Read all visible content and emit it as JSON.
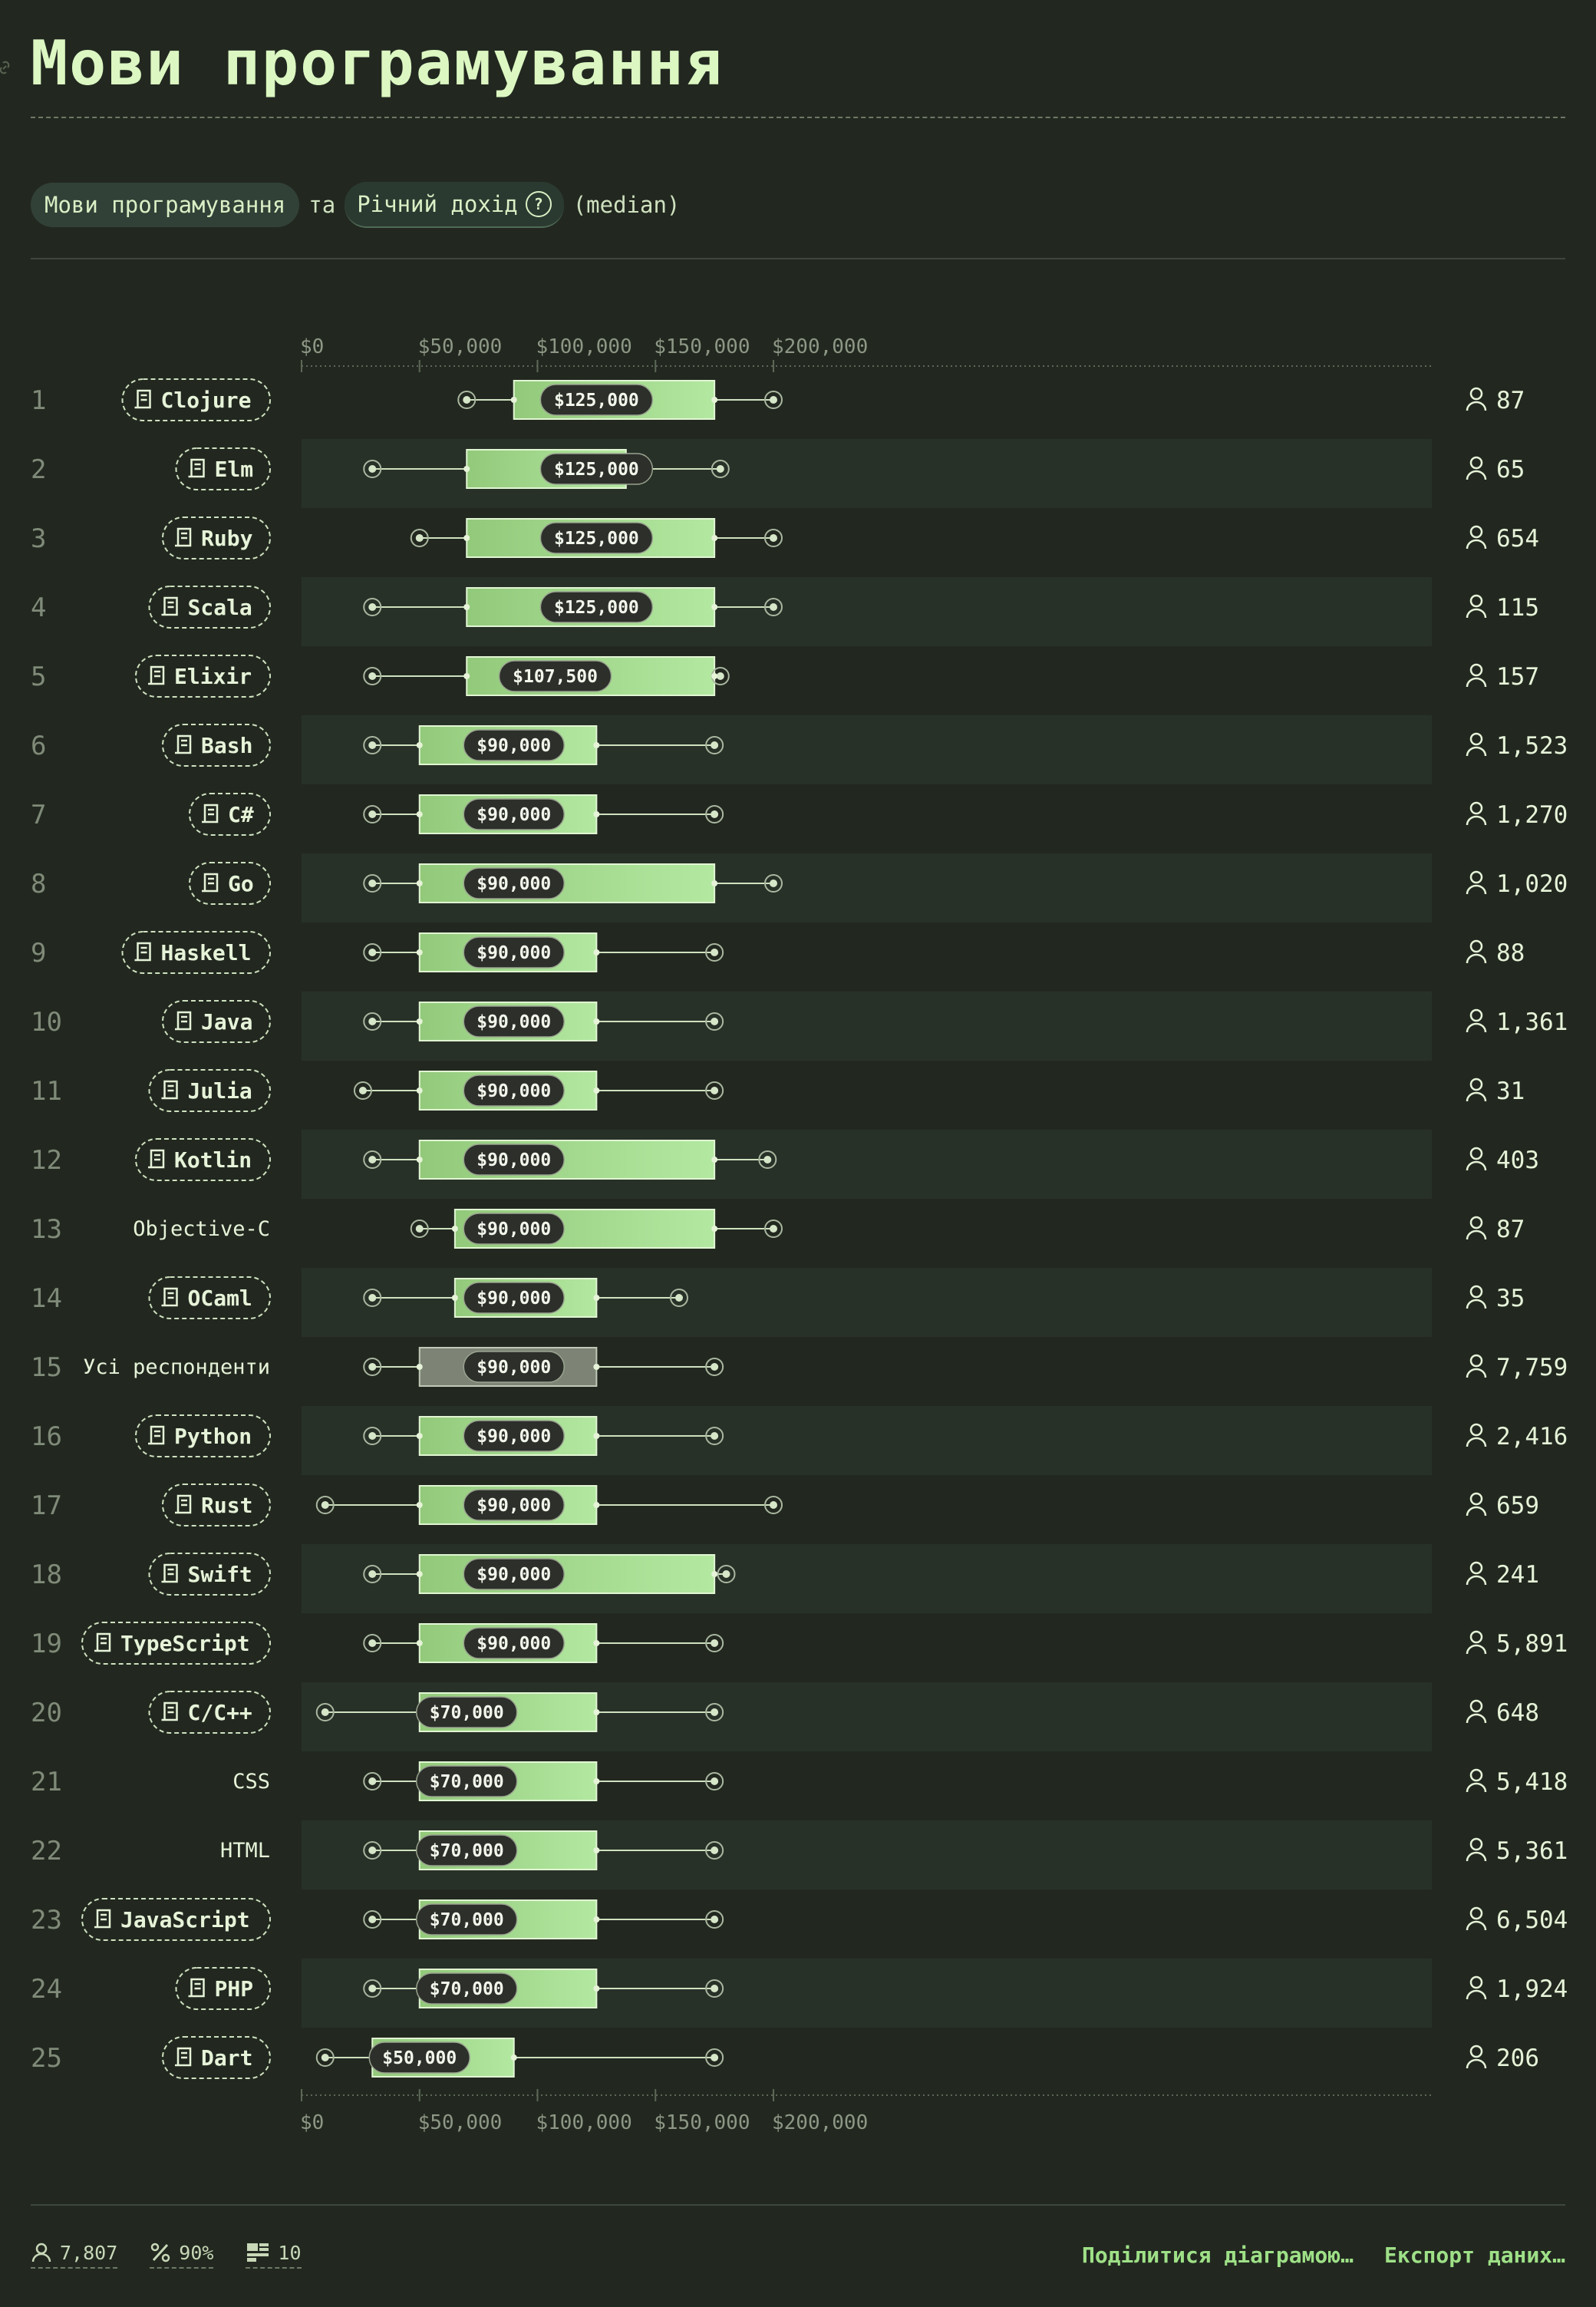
{
  "title": "Мови програмування",
  "subtitle": {
    "dimension": "Мови програмування",
    "conjunction": "та",
    "measure": "Річний дохід",
    "help_glyph": "?",
    "aggregation": "(median)"
  },
  "footer": {
    "respondents": "7,807",
    "percent": "90%",
    "filters": "10",
    "share_label": "Поділитися діаграмою…",
    "export_label": "Експорт даних…"
  },
  "colors": {
    "background": "#222820",
    "stripe": "#283128",
    "bar_light": "#b3e8a1",
    "bar_dark": "#92c97a",
    "bar_gray": "#7d8476",
    "label": "#e6f3d8",
    "muted": "#8d9785"
  },
  "chart_data": {
    "type": "boxplot",
    "x_ticks": [
      "$0",
      "$50,000",
      "$100,000",
      "$150,000",
      "$200,000"
    ],
    "x_tick_values": [
      0,
      50000,
      100000,
      150000,
      200000
    ],
    "xlim": [
      0,
      240000
    ],
    "rows": [
      {
        "rank": "1",
        "name": "Clojure",
        "tagged": true,
        "w_lo": 70000,
        "q1": 90000,
        "median": 125000,
        "q3": 175000,
        "w_hi": 200000,
        "median_label": "$125,000",
        "count": "87"
      },
      {
        "rank": "2",
        "name": "Elm",
        "tagged": true,
        "w_lo": 30000,
        "q1": 70000,
        "median": 125000,
        "q3": 137500,
        "w_hi": 177500,
        "median_label": "$125,000",
        "count": "65"
      },
      {
        "rank": "3",
        "name": "Ruby",
        "tagged": true,
        "w_lo": 50000,
        "q1": 70000,
        "median": 125000,
        "q3": 175000,
        "w_hi": 200000,
        "median_label": "$125,000",
        "count": "654"
      },
      {
        "rank": "4",
        "name": "Scala",
        "tagged": true,
        "w_lo": 30000,
        "q1": 70000,
        "median": 125000,
        "q3": 175000,
        "w_hi": 200000,
        "median_label": "$125,000",
        "count": "115"
      },
      {
        "rank": "5",
        "name": "Elixir",
        "tagged": true,
        "w_lo": 30000,
        "q1": 70000,
        "median": 107500,
        "q3": 175000,
        "w_hi": 177500,
        "median_label": "$107,500",
        "count": "157"
      },
      {
        "rank": "6",
        "name": "Bash",
        "tagged": true,
        "w_lo": 30000,
        "q1": 50000,
        "median": 90000,
        "q3": 125000,
        "w_hi": 175000,
        "median_label": "$90,000",
        "count": "1,523"
      },
      {
        "rank": "7",
        "name": "C#",
        "tagged": true,
        "w_lo": 30000,
        "q1": 50000,
        "median": 90000,
        "q3": 125000,
        "w_hi": 175000,
        "median_label": "$90,000",
        "count": "1,270"
      },
      {
        "rank": "8",
        "name": "Go",
        "tagged": true,
        "w_lo": 30000,
        "q1": 50000,
        "median": 90000,
        "q3": 175000,
        "w_hi": 200000,
        "median_label": "$90,000",
        "count": "1,020"
      },
      {
        "rank": "9",
        "name": "Haskell",
        "tagged": true,
        "w_lo": 30000,
        "q1": 50000,
        "median": 90000,
        "q3": 125000,
        "w_hi": 175000,
        "median_label": "$90,000",
        "count": "88"
      },
      {
        "rank": "10",
        "name": "Java",
        "tagged": true,
        "w_lo": 30000,
        "q1": 50000,
        "median": 90000,
        "q3": 125000,
        "w_hi": 175000,
        "median_label": "$90,000",
        "count": "1,361"
      },
      {
        "rank": "11",
        "name": "Julia",
        "tagged": true,
        "w_lo": 26000,
        "q1": 50000,
        "median": 90000,
        "q3": 125000,
        "w_hi": 175000,
        "median_label": "$90,000",
        "count": "31"
      },
      {
        "rank": "12",
        "name": "Kotlin",
        "tagged": true,
        "w_lo": 30000,
        "q1": 50000,
        "median": 90000,
        "q3": 175000,
        "w_hi": 197500,
        "median_label": "$90,000",
        "count": "403"
      },
      {
        "rank": "13",
        "name": "Objective-C",
        "tagged": false,
        "w_lo": 50000,
        "q1": 65000,
        "median": 90000,
        "q3": 175000,
        "w_hi": 200000,
        "median_label": "$90,000",
        "count": "87"
      },
      {
        "rank": "14",
        "name": "OCaml",
        "tagged": true,
        "w_lo": 30000,
        "q1": 65000,
        "median": 90000,
        "q3": 125000,
        "w_hi": 160000,
        "median_label": "$90,000",
        "count": "35"
      },
      {
        "rank": "15",
        "name": "Усі респонденти",
        "tagged": false,
        "gray": true,
        "w_lo": 30000,
        "q1": 50000,
        "median": 90000,
        "q3": 125000,
        "w_hi": 175000,
        "median_label": "$90,000",
        "count": "7,759"
      },
      {
        "rank": "16",
        "name": "Python",
        "tagged": true,
        "w_lo": 30000,
        "q1": 50000,
        "median": 90000,
        "q3": 125000,
        "w_hi": 175000,
        "median_label": "$90,000",
        "count": "2,416"
      },
      {
        "rank": "17",
        "name": "Rust",
        "tagged": true,
        "w_lo": 10000,
        "q1": 50000,
        "median": 90000,
        "q3": 125000,
        "w_hi": 200000,
        "median_label": "$90,000",
        "count": "659"
      },
      {
        "rank": "18",
        "name": "Swift",
        "tagged": true,
        "w_lo": 30000,
        "q1": 50000,
        "median": 90000,
        "q3": 175000,
        "w_hi": 180000,
        "median_label": "$90,000",
        "count": "241"
      },
      {
        "rank": "19",
        "name": "TypeScript",
        "tagged": true,
        "w_lo": 30000,
        "q1": 50000,
        "median": 90000,
        "q3": 125000,
        "w_hi": 175000,
        "median_label": "$90,000",
        "count": "5,891"
      },
      {
        "rank": "20",
        "name": "C/C++",
        "tagged": true,
        "w_lo": 10000,
        "q1": 50000,
        "median": 70000,
        "q3": 125000,
        "w_hi": 175000,
        "median_label": "$70,000",
        "count": "648"
      },
      {
        "rank": "21",
        "name": "CSS",
        "tagged": false,
        "w_lo": 30000,
        "q1": 50000,
        "median": 70000,
        "q3": 125000,
        "w_hi": 175000,
        "median_label": "$70,000",
        "count": "5,418"
      },
      {
        "rank": "22",
        "name": "HTML",
        "tagged": false,
        "w_lo": 30000,
        "q1": 50000,
        "median": 70000,
        "q3": 125000,
        "w_hi": 175000,
        "median_label": "$70,000",
        "count": "5,361"
      },
      {
        "rank": "23",
        "name": "JavaScript",
        "tagged": true,
        "w_lo": 30000,
        "q1": 50000,
        "median": 70000,
        "q3": 125000,
        "w_hi": 175000,
        "median_label": "$70,000",
        "count": "6,504"
      },
      {
        "rank": "24",
        "name": "PHP",
        "tagged": true,
        "w_lo": 30000,
        "q1": 50000,
        "median": 70000,
        "q3": 125000,
        "w_hi": 175000,
        "median_label": "$70,000",
        "count": "1,924"
      },
      {
        "rank": "25",
        "name": "Dart",
        "tagged": true,
        "w_lo": 10000,
        "q1": 30000,
        "median": 50000,
        "q3": 90000,
        "w_hi": 175000,
        "median_label": "$50,000",
        "count": "206"
      }
    ]
  }
}
